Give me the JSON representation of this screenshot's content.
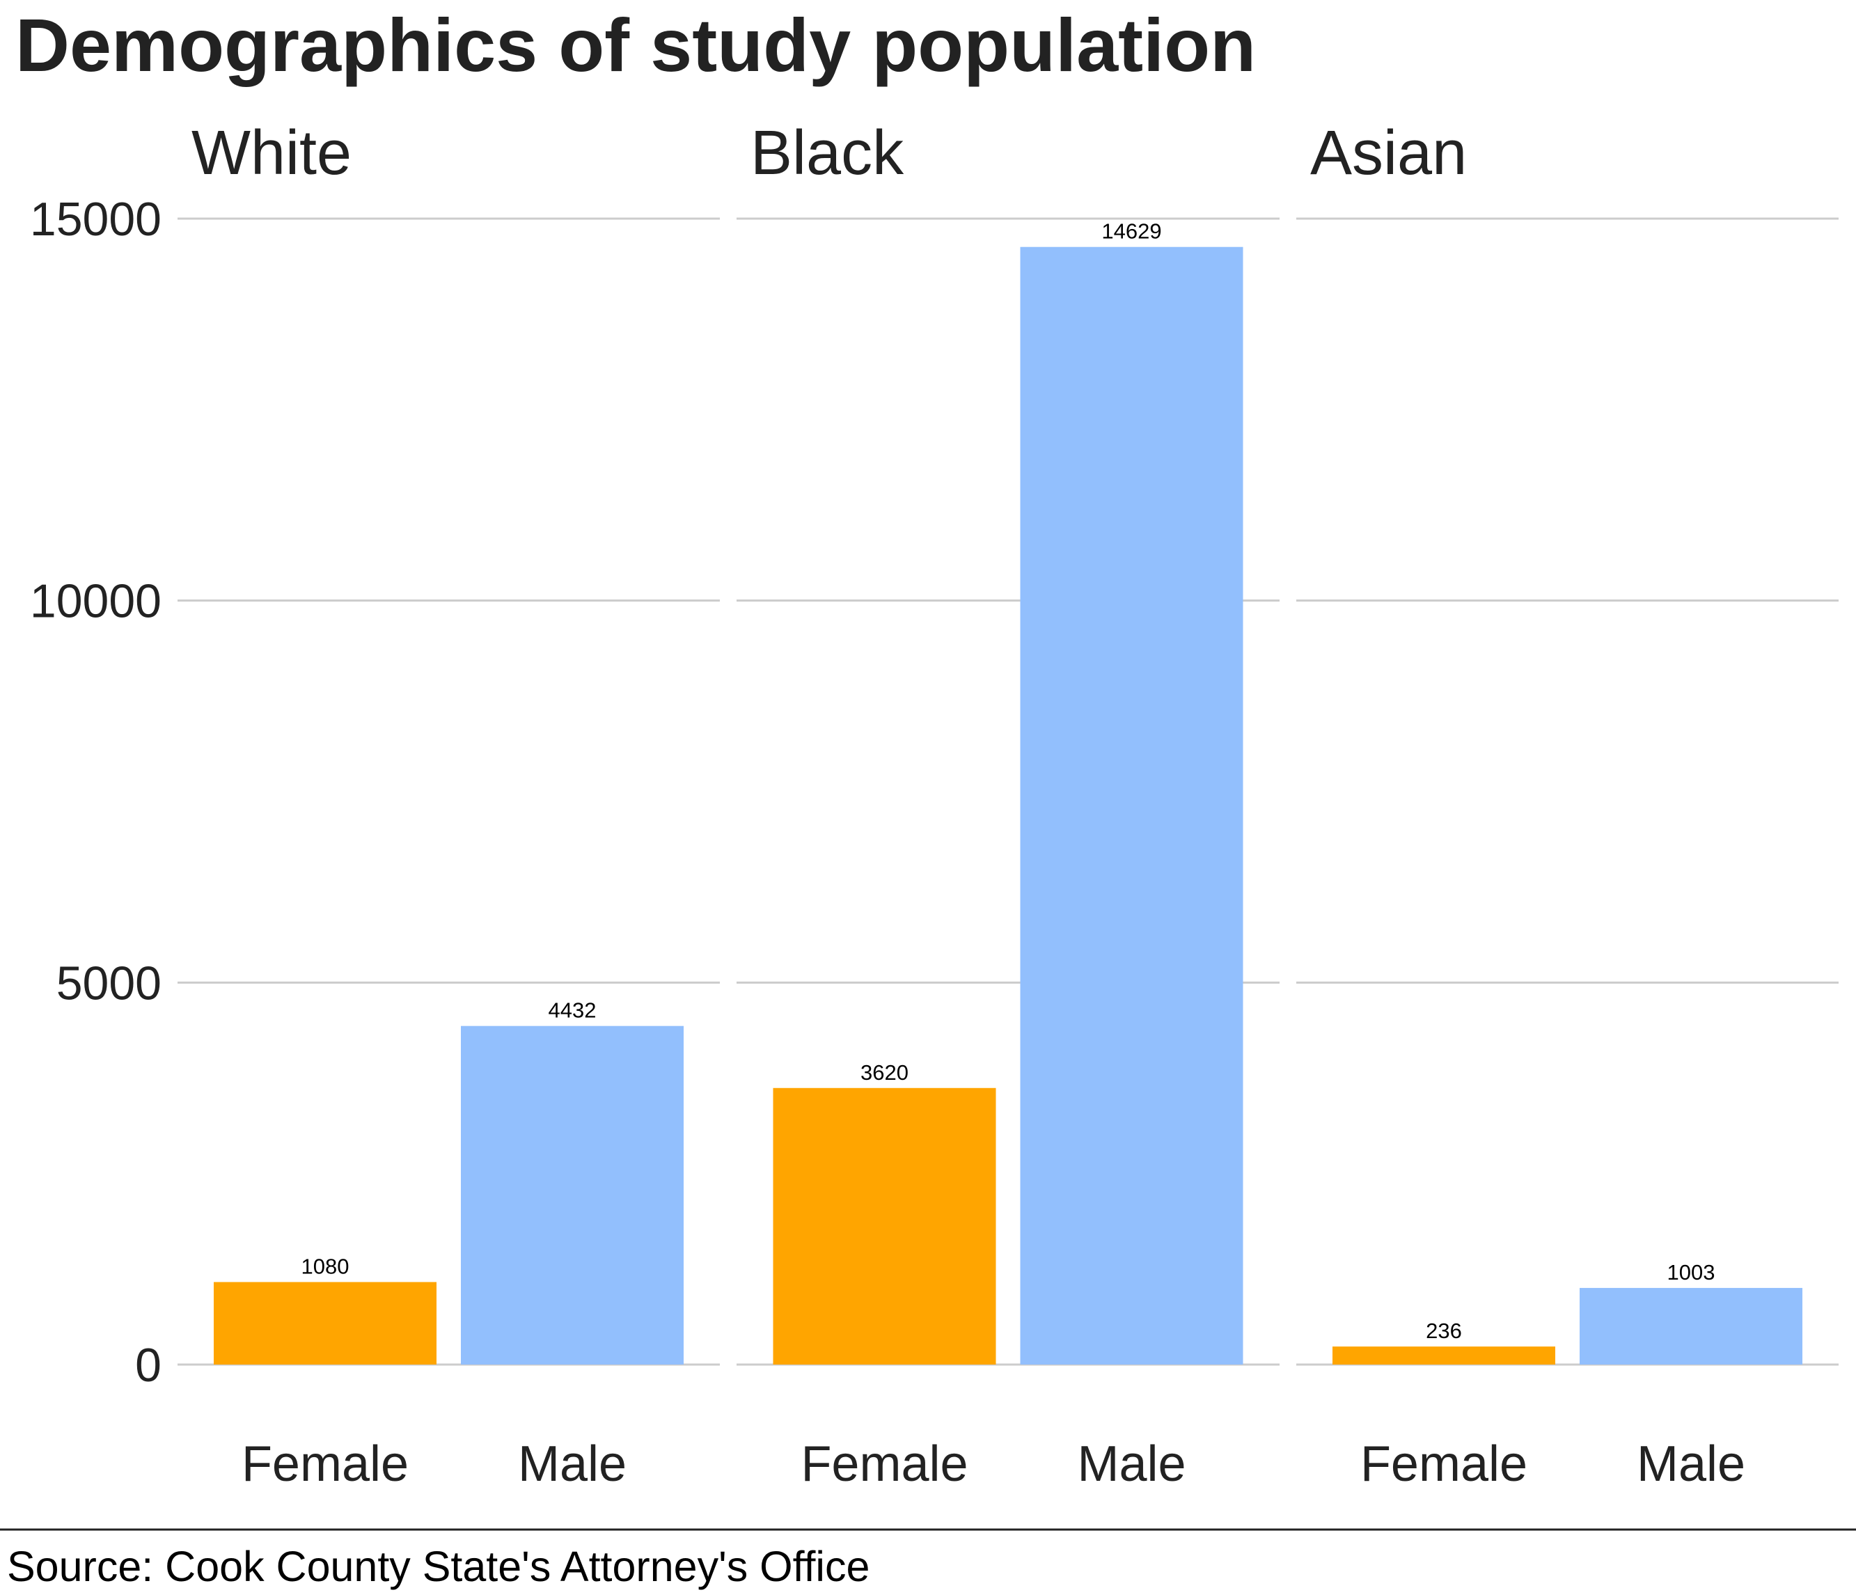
{
  "chart_data": {
    "type": "bar",
    "title": "Demographics of study population",
    "source": "Source: Cook County State's Attorney's Office",
    "facets": [
      "White",
      "Black",
      "Asian"
    ],
    "categories": [
      "Female",
      "Male"
    ],
    "values": [
      [
        1080,
        4432
      ],
      [
        3620,
        14629
      ],
      [
        236,
        1003
      ]
    ],
    "value_labels": [
      [
        "1080",
        "4432"
      ],
      [
        "3620",
        "14629"
      ],
      [
        "236",
        "1003"
      ]
    ],
    "ylim": [
      0,
      15000
    ],
    "yticks": [
      0,
      5000,
      10000,
      15000
    ],
    "ytick_labels": [
      "0",
      "5000",
      "10000",
      "15000"
    ],
    "grid": true,
    "legend": "none",
    "colors": {
      "Female": "#FFA500",
      "Male": "#92BFFD"
    }
  }
}
